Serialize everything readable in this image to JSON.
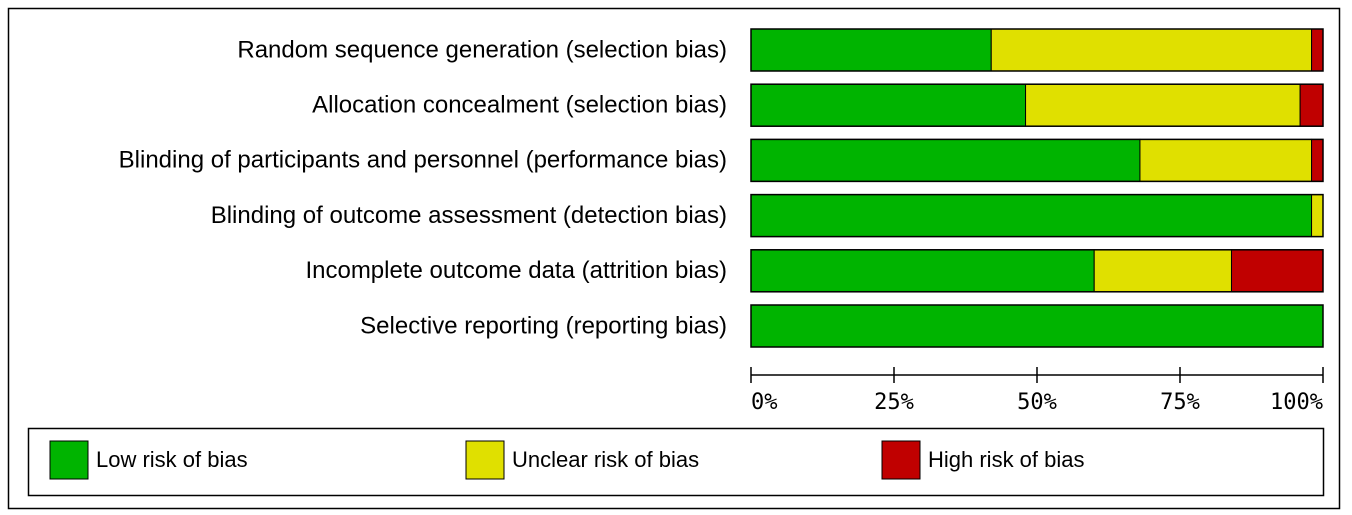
{
  "chart_data": {
    "type": "bar",
    "orientation": "horizontal",
    "stacked": true,
    "categories": [
      "Random sequence generation (selection bias)",
      "Allocation concealment (selection bias)",
      "Blinding of participants and personnel (performance bias)",
      "Blinding of outcome assessment (detection bias)",
      "Incomplete outcome data (attrition bias)",
      "Selective reporting (reporting bias)"
    ],
    "series": [
      {
        "name": "Low risk of bias",
        "color": "#00b400",
        "values": [
          42,
          48,
          68,
          98,
          60,
          100
        ]
      },
      {
        "name": "Unclear risk of bias",
        "color": "#e0e000",
        "values": [
          56,
          48,
          30,
          2,
          24,
          0
        ]
      },
      {
        "name": "High risk of bias",
        "color": "#c00000",
        "values": [
          2,
          4,
          2,
          0,
          16,
          0
        ]
      }
    ],
    "xlim": [
      0,
      100
    ],
    "xticks": [
      {
        "value": 0,
        "label": "0%"
      },
      {
        "value": 25,
        "label": "25%"
      },
      {
        "value": 50,
        "label": "50%"
      },
      {
        "value": 75,
        "label": "75%"
      },
      {
        "value": 100,
        "label": "100%"
      }
    ],
    "legend": "bottom"
  }
}
